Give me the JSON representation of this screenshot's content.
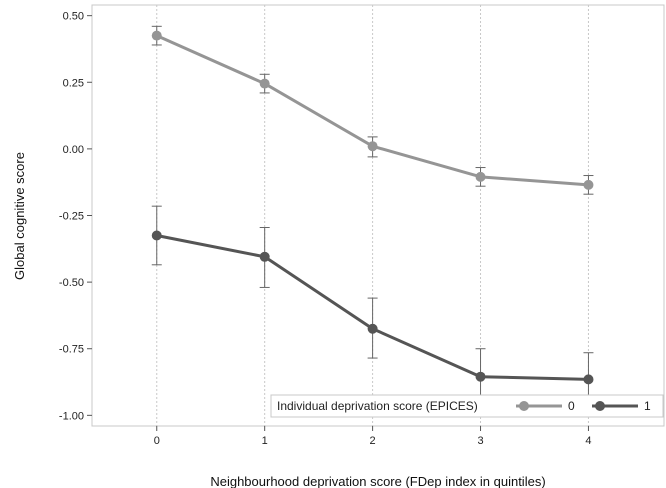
{
  "chart_data": {
    "type": "line",
    "xlabel": "Neighbourhood deprivation score (FDep index in quintiles)",
    "ylabel": "Global cognitive score",
    "x": [
      0,
      1,
      2,
      3,
      4
    ],
    "xlim": [
      -0.6,
      4.7
    ],
    "ylim": [
      -1.04,
      0.54
    ],
    "x_ticks": [
      0,
      1,
      2,
      3,
      4
    ],
    "y_ticks": [
      0.5,
      0.25,
      0.0,
      -0.25,
      -0.5,
      -0.75,
      -1.0
    ],
    "y_tick_labels": [
      "0.50",
      "0.25",
      "0.00",
      "-0.25",
      "-0.50",
      "-0.75",
      "-1.00"
    ],
    "grid": "vertical dotted",
    "legend": {
      "title": "Individual deprivation score (EPICES)",
      "placement": "bottom-right"
    },
    "series": [
      {
        "name": "0",
        "color": "#959595",
        "values": [
          0.425,
          0.245,
          0.01,
          -0.105,
          -0.135
        ],
        "err_low": [
          0.39,
          0.21,
          -0.03,
          -0.14,
          -0.17
        ],
        "err_high": [
          0.46,
          0.28,
          0.045,
          -0.07,
          -0.1
        ]
      },
      {
        "name": "1",
        "color": "#555555",
        "values": [
          -0.325,
          -0.405,
          -0.675,
          -0.855,
          -0.865
        ],
        "err_low": [
          -0.435,
          -0.52,
          -0.785,
          -0.96,
          -0.96
        ],
        "err_high": [
          -0.215,
          -0.295,
          -0.56,
          -0.75,
          -0.765
        ]
      }
    ]
  }
}
